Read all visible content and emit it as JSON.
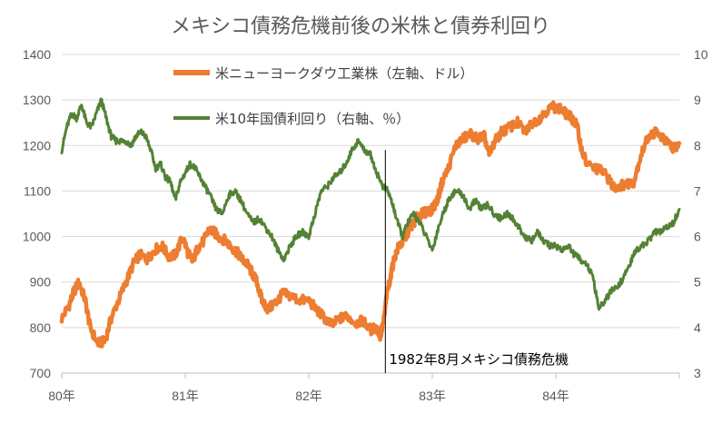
{
  "chart_data": {
    "type": "line",
    "title": "メキシコ債務危機前後の米株と債券利回り",
    "x_tick_labels": [
      "80年",
      "81年",
      "82年",
      "83年",
      "84年"
    ],
    "x_range": [
      1980.0,
      1985.0
    ],
    "left_axis": {
      "min": 700,
      "max": 1400,
      "step": 100,
      "ticks": [
        "700",
        "800",
        "900",
        "1000",
        "1100",
        "1200",
        "1300",
        "1400"
      ]
    },
    "right_axis": {
      "min": 3,
      "max": 10,
      "step": 1,
      "ticks": [
        "3",
        "4",
        "5",
        "6",
        "7",
        "8",
        "9",
        "10"
      ]
    },
    "series": [
      {
        "name": "米ニューヨークダウ工業株（左軸、ドル）",
        "axis": "left",
        "color": "#ED7D31",
        "x": [
          1980.0,
          1980.06,
          1980.1,
          1980.14,
          1980.19,
          1980.23,
          1980.29,
          1980.35,
          1980.4,
          1980.46,
          1980.52,
          1980.58,
          1980.63,
          1980.69,
          1980.75,
          1980.81,
          1980.87,
          1980.92,
          1980.98,
          1981.02,
          1981.06,
          1981.1,
          1981.15,
          1981.19,
          1981.23,
          1981.27,
          1981.33,
          1981.38,
          1981.42,
          1981.46,
          1981.5,
          1981.54,
          1981.58,
          1981.62,
          1981.67,
          1981.71,
          1981.75,
          1981.79,
          1981.85,
          1981.92,
          1982.0,
          1982.06,
          1982.13,
          1982.19,
          1982.25,
          1982.31,
          1982.38,
          1982.44,
          1982.5,
          1982.55,
          1982.58,
          1982.61,
          1982.63,
          1982.66,
          1982.69,
          1982.73,
          1982.77,
          1982.81,
          1982.85,
          1982.88,
          1982.92,
          1982.96,
          1983.0,
          1983.04,
          1983.08,
          1983.13,
          1983.19,
          1983.25,
          1983.31,
          1983.37,
          1983.42,
          1983.46,
          1983.5,
          1983.56,
          1983.63,
          1983.69,
          1983.75,
          1983.81,
          1983.87,
          1983.92,
          1983.98,
          1984.04,
          1984.08,
          1984.13,
          1984.17,
          1984.21,
          1984.25,
          1984.31,
          1984.37,
          1984.42,
          1984.46,
          1984.5,
          1984.56,
          1984.63,
          1984.69,
          1984.75,
          1984.81,
          1984.87,
          1984.92,
          1984.96,
          1985.0
        ],
        "values": [
          820,
          850,
          880,
          900,
          860,
          800,
          765,
          770,
          820,
          860,
          900,
          940,
          960,
          950,
          970,
          980,
          955,
          960,
          1000,
          965,
          945,
          975,
          990,
          1015,
          1010,
          1000,
          990,
          975,
          965,
          950,
          940,
          920,
          900,
          860,
          840,
          850,
          860,
          875,
          870,
          860,
          860,
          840,
          820,
          805,
          820,
          825,
          810,
          815,
          795,
          800,
          780,
          820,
          870,
          910,
          950,
          980,
          990,
          1015,
          1030,
          1045,
          1050,
          1055,
          1060,
          1080,
          1120,
          1150,
          1200,
          1215,
          1225,
          1215,
          1220,
          1180,
          1205,
          1230,
          1240,
          1250,
          1230,
          1250,
          1260,
          1275,
          1285,
          1280,
          1270,
          1260,
          1245,
          1190,
          1160,
          1150,
          1145,
          1130,
          1110,
          1110,
          1115,
          1120,
          1180,
          1220,
          1230,
          1215,
          1200,
          1195,
          1205
        ]
      },
      {
        "name": "米10年国債利回り（右軸、％）",
        "axis": "right",
        "color": "#548235",
        "x": [
          1980.0,
          1980.04,
          1980.08,
          1980.12,
          1980.16,
          1980.2,
          1980.24,
          1980.28,
          1980.32,
          1980.36,
          1980.4,
          1980.44,
          1980.48,
          1980.52,
          1980.56,
          1980.6,
          1980.64,
          1980.68,
          1980.72,
          1980.76,
          1980.8,
          1980.84,
          1980.88,
          1980.92,
          1980.96,
          1981.0,
          1981.04,
          1981.08,
          1981.12,
          1981.16,
          1981.2,
          1981.25,
          1981.3,
          1981.35,
          1981.4,
          1981.45,
          1981.5,
          1981.55,
          1981.6,
          1981.65,
          1981.7,
          1981.75,
          1981.8,
          1981.85,
          1981.9,
          1981.95,
          1982.0,
          1982.05,
          1982.1,
          1982.15,
          1982.2,
          1982.25,
          1982.3,
          1982.35,
          1982.4,
          1982.45,
          1982.5,
          1982.55,
          1982.6,
          1982.64,
          1982.68,
          1982.72,
          1982.76,
          1982.8,
          1982.85,
          1982.9,
          1982.95,
          1983.0,
          1983.05,
          1983.1,
          1983.15,
          1983.2,
          1983.25,
          1983.3,
          1983.35,
          1983.4,
          1983.45,
          1983.5,
          1983.55,
          1983.6,
          1983.65,
          1983.7,
          1983.75,
          1983.8,
          1983.85,
          1983.9,
          1983.95,
          1984.0,
          1984.05,
          1984.1,
          1984.15,
          1984.2,
          1984.25,
          1984.3,
          1984.35,
          1984.4,
          1984.45,
          1984.5,
          1984.55,
          1984.6,
          1984.65,
          1984.7,
          1984.75,
          1984.8,
          1984.85,
          1984.9,
          1984.95,
          1985.0
        ],
        "values": [
          7.9,
          8.4,
          8.7,
          8.6,
          8.9,
          8.5,
          8.4,
          8.7,
          9.0,
          8.6,
          8.2,
          8.1,
          8.1,
          8.1,
          8.0,
          8.2,
          8.3,
          8.2,
          7.9,
          7.5,
          7.6,
          7.3,
          7.2,
          6.8,
          7.2,
          7.4,
          7.6,
          7.5,
          7.3,
          7.1,
          6.9,
          6.6,
          6.5,
          6.9,
          7.0,
          6.8,
          6.5,
          6.3,
          6.4,
          6.2,
          6.0,
          5.7,
          5.5,
          5.8,
          6.0,
          6.1,
          6.0,
          6.5,
          7.0,
          7.1,
          7.3,
          7.4,
          7.6,
          7.9,
          8.1,
          7.9,
          7.8,
          7.4,
          7.1,
          7.0,
          6.7,
          6.3,
          6.0,
          6.3,
          6.5,
          6.3,
          6.0,
          5.7,
          6.2,
          6.6,
          6.9,
          7.0,
          6.9,
          6.6,
          6.8,
          6.6,
          6.7,
          6.5,
          6.4,
          6.5,
          6.4,
          6.2,
          6.0,
          5.9,
          6.1,
          5.9,
          5.8,
          5.8,
          5.7,
          5.8,
          5.6,
          5.5,
          5.4,
          5.1,
          4.4,
          4.6,
          4.8,
          4.9,
          5.1,
          5.4,
          5.7,
          5.8,
          5.9,
          6.1,
          6.1,
          6.2,
          6.3,
          6.6
        ]
      }
    ],
    "legend_position": "top-center",
    "annotations": [
      {
        "text": "1982年8月メキシコ債務危機",
        "x": 1982.62
      }
    ],
    "grid": true
  }
}
